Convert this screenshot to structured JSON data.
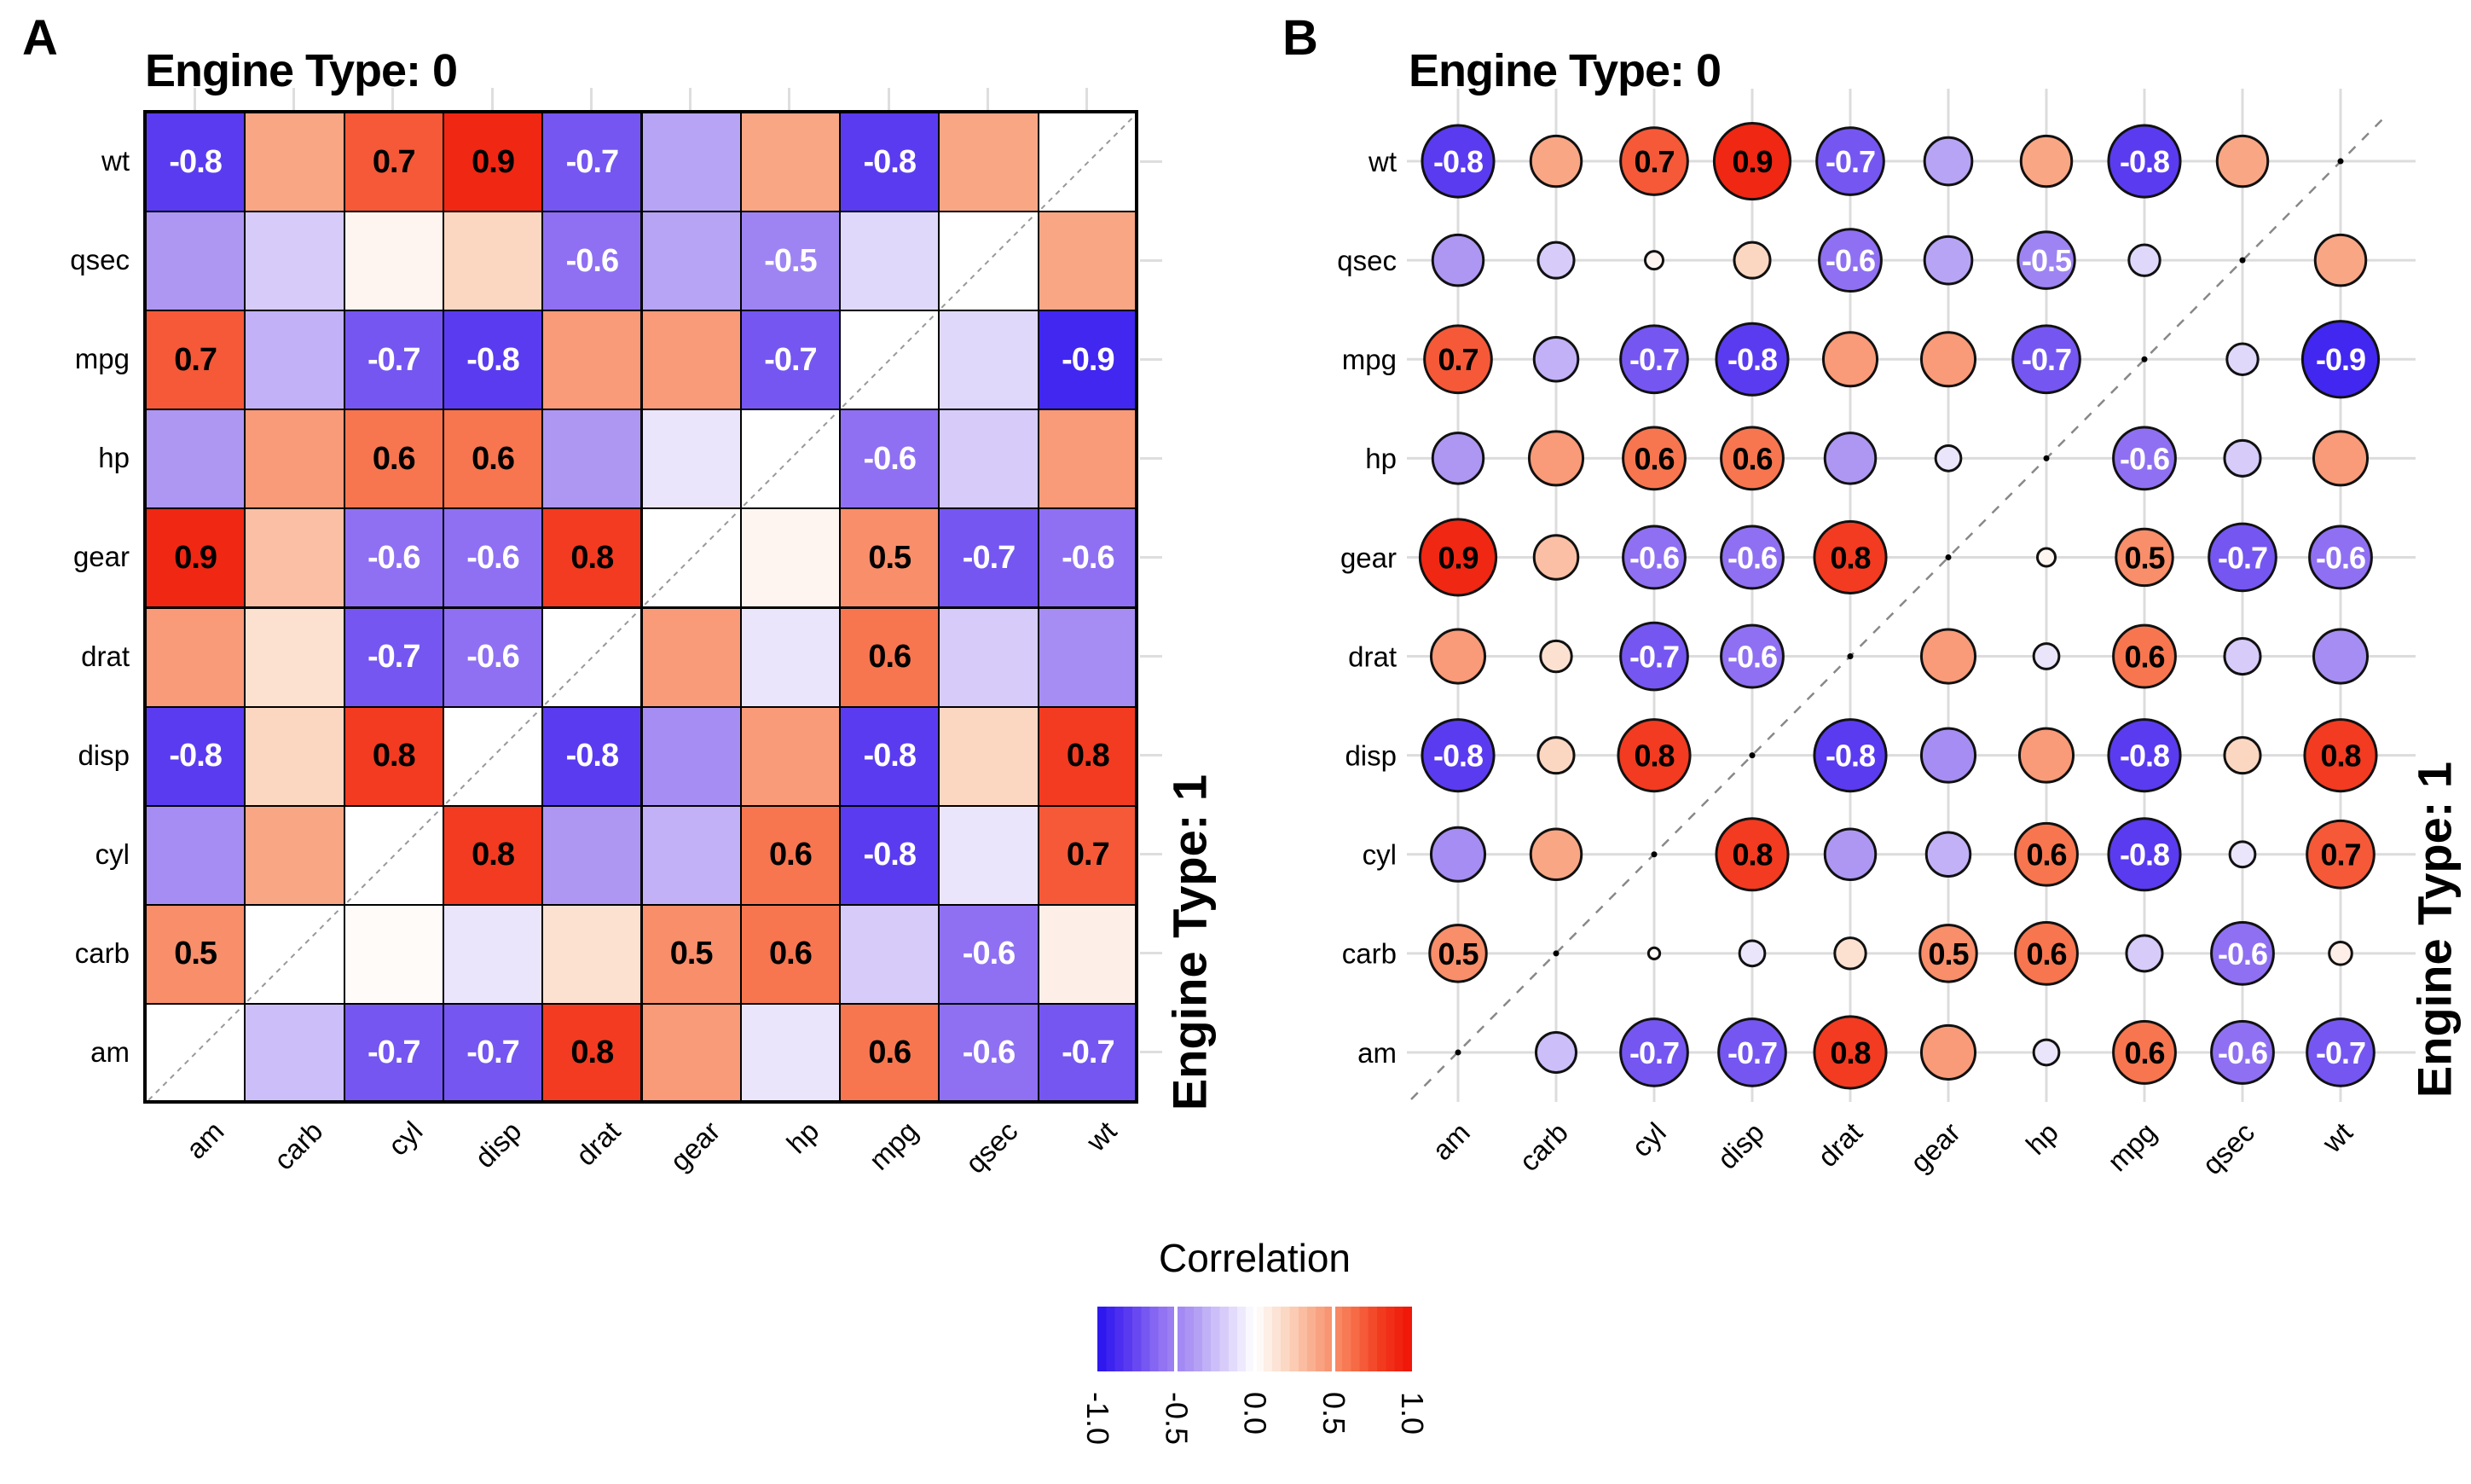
{
  "figure": {
    "panel_a_letter": "A",
    "panel_b_letter": "B",
    "panel_a_title": "Engine Type: 0",
    "panel_b_title": "Engine Type: 0",
    "panel_a_right_strip": "Engine Type: 1",
    "panel_b_right_strip": "Engine Type: 1"
  },
  "legend": {
    "title": "Correlation",
    "tick_labels": [
      "-1.0",
      "-0.5",
      "0.0",
      "0.5",
      "1.0"
    ],
    "tick_values": [
      -1,
      -0.5,
      0,
      0.5,
      1
    ],
    "range": [
      -1,
      1
    ],
    "color_negative": "#2712EE",
    "color_zero": "#FFFFFF",
    "color_positive": "#EE1205"
  },
  "palette": {
    "stops": [
      -1,
      -0.8,
      -0.6,
      -0.4,
      -0.2,
      0,
      0.2,
      0.4,
      0.6,
      0.8,
      1
    ],
    "colors": [
      "#2712EE",
      "#5B3BF0",
      "#8F70F2",
      "#AD97F3",
      "#D6CBF9",
      "#FFFFFF",
      "#FBD7C2",
      "#F9A685",
      "#F7764F",
      "#F23B20",
      "#EE1205"
    ]
  },
  "chart_data": [
    {
      "id": "A",
      "type": "heatmap",
      "title": "Engine Type: 0",
      "right_label": "Engine Type: 1",
      "upper_left_triangle_group": "Engine Type: 0",
      "lower_right_triangle_group": "Engine Type: 1",
      "diagonal": "blank cells with dashed line",
      "label_threshold": 0.5,
      "columns": [
        "am",
        "carb",
        "cyl",
        "disp",
        "drat",
        "gear",
        "hp",
        "mpg",
        "qsec",
        "wt"
      ],
      "rows_top_to_bottom": [
        "wt",
        "qsec",
        "mpg",
        "hp",
        "gear",
        "drat",
        "disp",
        "cyl",
        "carb",
        "am"
      ],
      "values": [
        [
          -0.8,
          0.4,
          0.7,
          0.9,
          -0.7,
          -0.35,
          0.4,
          -0.8,
          0.4,
          null
        ],
        [
          -0.4,
          -0.2,
          0.05,
          0.2,
          -0.6,
          -0.35,
          -0.5,
          -0.15,
          null,
          0.4
        ],
        [
          0.7,
          -0.3,
          -0.7,
          -0.8,
          0.45,
          0.45,
          -0.7,
          null,
          -0.15,
          -0.9
        ],
        [
          -0.4,
          0.45,
          0.6,
          0.6,
          -0.4,
          -0.1,
          null,
          -0.6,
          -0.2,
          0.45
        ],
        [
          0.9,
          0.3,
          -0.6,
          -0.6,
          0.8,
          null,
          0.05,
          0.5,
          -0.7,
          -0.6
        ],
        [
          0.45,
          0.15,
          -0.7,
          -0.6,
          null,
          0.45,
          -0.1,
          0.6,
          -0.2,
          -0.45
        ],
        [
          -0.8,
          0.2,
          0.8,
          null,
          -0.8,
          -0.45,
          0.45,
          -0.8,
          0.2,
          0.8
        ],
        [
          -0.45,
          0.4,
          null,
          0.8,
          -0.4,
          -0.3,
          0.6,
          -0.8,
          -0.1,
          0.7
        ],
        [
          0.5,
          null,
          0.02,
          -0.1,
          0.15,
          0.5,
          0.6,
          -0.2,
          -0.6,
          0.08
        ],
        [
          null,
          -0.25,
          -0.7,
          -0.7,
          0.8,
          0.45,
          -0.1,
          0.6,
          -0.6,
          -0.7
        ]
      ]
    },
    {
      "id": "B",
      "type": "bubble",
      "title": "Engine Type: 0",
      "right_label": "Engine Type: 1",
      "upper_left_triangle_group": "Engine Type: 0",
      "lower_right_triangle_group": "Engine Type: 1",
      "diagonal": "small black dots with dashed line",
      "size_encoding": "circle radius proportional to sqrt(|correlation|)",
      "grid": true,
      "label_threshold": 0.5,
      "columns": [
        "am",
        "carb",
        "cyl",
        "disp",
        "drat",
        "gear",
        "hp",
        "mpg",
        "qsec",
        "wt"
      ],
      "rows_top_to_bottom": [
        "wt",
        "qsec",
        "mpg",
        "hp",
        "gear",
        "drat",
        "disp",
        "cyl",
        "carb",
        "am"
      ],
      "values": [
        [
          -0.8,
          0.4,
          0.7,
          0.9,
          -0.7,
          -0.35,
          0.4,
          -0.8,
          0.4,
          null
        ],
        [
          -0.4,
          -0.2,
          0.05,
          0.2,
          -0.6,
          -0.35,
          -0.5,
          -0.15,
          null,
          0.4
        ],
        [
          0.7,
          -0.3,
          -0.7,
          -0.8,
          0.45,
          0.45,
          -0.7,
          null,
          -0.15,
          -0.9
        ],
        [
          -0.4,
          0.45,
          0.6,
          0.6,
          -0.4,
          -0.1,
          null,
          -0.6,
          -0.2,
          0.45
        ],
        [
          0.9,
          0.3,
          -0.6,
          -0.6,
          0.8,
          null,
          0.05,
          0.5,
          -0.7,
          -0.6
        ],
        [
          0.45,
          0.15,
          -0.7,
          -0.6,
          null,
          0.45,
          -0.1,
          0.6,
          -0.2,
          -0.45
        ],
        [
          -0.8,
          0.2,
          0.8,
          null,
          -0.8,
          -0.45,
          0.45,
          -0.8,
          0.2,
          0.8
        ],
        [
          -0.45,
          0.4,
          null,
          0.8,
          -0.4,
          -0.3,
          0.6,
          -0.8,
          -0.1,
          0.7
        ],
        [
          0.5,
          null,
          0.02,
          -0.1,
          0.15,
          0.5,
          0.6,
          -0.2,
          -0.6,
          0.08
        ],
        [
          null,
          -0.25,
          -0.7,
          -0.7,
          0.8,
          0.45,
          -0.1,
          0.6,
          -0.6,
          -0.7
        ]
      ]
    }
  ]
}
